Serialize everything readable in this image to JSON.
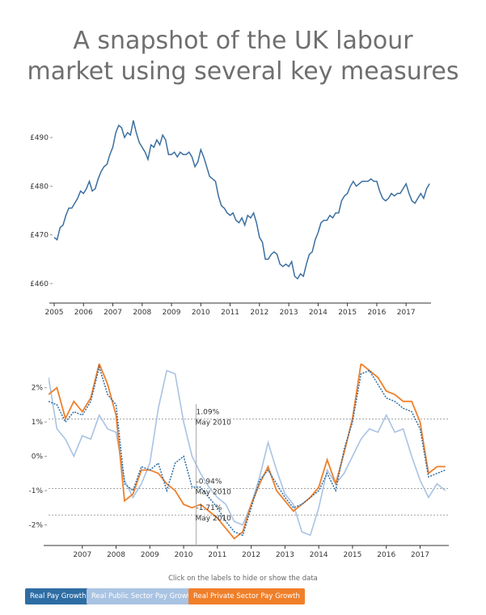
{
  "page": {
    "title_line1": "A snapshot of the UK labour",
    "title_line2": "market using several key measures",
    "hint": "Click on the labels to hide or show the data"
  },
  "legend": [
    {
      "label": "Real Pay Growth",
      "color": "#2e6da4"
    },
    {
      "label": "Real Public Sector Pay Growth",
      "color": "#a9c3e3"
    },
    {
      "label": "Real Private Sector Pay Growth",
      "color": "#f07f2a"
    }
  ],
  "chart_data": [
    {
      "type": "line",
      "x_ticks": [
        "2005",
        "2006",
        "2007",
        "2008",
        "2009",
        "2010",
        "2011",
        "2012",
        "2013",
        "2014",
        "2015",
        "2016",
        "2017"
      ],
      "y_ticks": [
        "£460",
        "£470",
        "£480",
        "£490"
      ],
      "ylim": [
        456,
        495
      ],
      "xlim": [
        2005,
        2017.85
      ],
      "series": [
        {
          "color": "#3a6fa0",
          "x": [
            2005.0,
            2005.1,
            2005.2,
            2005.3,
            2005.4,
            2005.5,
            2005.6,
            2005.7,
            2005.8,
            2005.9,
            2006.0,
            2006.1,
            2006.2,
            2006.3,
            2006.4,
            2006.5,
            2006.6,
            2006.7,
            2006.8,
            2006.9,
            2007.0,
            2007.1,
            2007.2,
            2007.3,
            2007.4,
            2007.5,
            2007.6,
            2007.7,
            2007.8,
            2007.9,
            2008.0,
            2008.1,
            2008.2,
            2008.3,
            2008.4,
            2008.5,
            2008.6,
            2008.7,
            2008.8,
            2008.9,
            2009.0,
            2009.1,
            2009.2,
            2009.3,
            2009.4,
            2009.5,
            2009.6,
            2009.7,
            2009.8,
            2009.9,
            2010.0,
            2010.1,
            2010.2,
            2010.3,
            2010.4,
            2010.5,
            2010.6,
            2010.7,
            2010.8,
            2010.9,
            2011.0,
            2011.1,
            2011.2,
            2011.3,
            2011.4,
            2011.5,
            2011.6,
            2011.7,
            2011.8,
            2011.9,
            2012.0,
            2012.1,
            2012.2,
            2012.3,
            2012.4,
            2012.5,
            2012.6,
            2012.7,
            2012.8,
            2012.9,
            2013.0,
            2013.1,
            2013.2,
            2013.3,
            2013.4,
            2013.5,
            2013.6,
            2013.7,
            2013.8,
            2013.9,
            2014.0,
            2014.1,
            2014.2,
            2014.3,
            2014.4,
            2014.5,
            2014.6,
            2014.7,
            2014.8,
            2014.9,
            2015.0,
            2015.1,
            2015.2,
            2015.3,
            2015.4,
            2015.5,
            2015.6,
            2015.7,
            2015.8,
            2015.9,
            2016.0,
            2016.1,
            2016.2,
            2016.3,
            2016.4,
            2016.5,
            2016.6,
            2016.7,
            2016.8,
            2016.9,
            2017.0,
            2017.1,
            2017.2,
            2017.3,
            2017.4,
            2017.5,
            2017.6,
            2017.7,
            2017.8
          ],
          "values": [
            469.5,
            469.0,
            471.5,
            472.0,
            474.0,
            475.5,
            475.5,
            476.5,
            477.5,
            479.0,
            478.5,
            479.5,
            481.0,
            479.0,
            479.5,
            481.5,
            483.0,
            484.0,
            484.5,
            486.5,
            488.0,
            491.0,
            492.5,
            492.0,
            490.0,
            491.0,
            490.5,
            493.5,
            491.0,
            489.0,
            488.0,
            487.0,
            485.5,
            488.5,
            488.0,
            489.5,
            488.5,
            490.5,
            489.5,
            486.5,
            486.5,
            487.0,
            486.0,
            487.0,
            486.5,
            486.5,
            487.0,
            486.0,
            484.0,
            485.0,
            487.5,
            486.0,
            484.0,
            482.0,
            481.5,
            481.0,
            478.0,
            476.0,
            475.5,
            474.5,
            474.0,
            474.5,
            473.0,
            472.5,
            473.5,
            472.0,
            474.0,
            473.5,
            474.5,
            472.5,
            469.5,
            468.5,
            465.0,
            465.0,
            466.0,
            466.5,
            466.0,
            464.0,
            463.5,
            464.0,
            463.5,
            464.5,
            461.5,
            461.0,
            462.0,
            461.5,
            464.0,
            466.0,
            466.5,
            469.0,
            470.5,
            472.5,
            473.0,
            473.0,
            474.0,
            473.5,
            474.5,
            474.5,
            477.0,
            478.0,
            478.5,
            480.0,
            481.0,
            480.0,
            480.5,
            481.0,
            481.0,
            481.0,
            481.5,
            481.0,
            481.0,
            479.0,
            477.5,
            477.0,
            477.5,
            478.5,
            478.0,
            478.5,
            478.5,
            479.5,
            480.5,
            478.5,
            477.0,
            476.5,
            477.5,
            478.5,
            477.5,
            479.5,
            480.5
          ]
        }
      ]
    },
    {
      "type": "line",
      "x_ticks": [
        "2007",
        "2008",
        "2009",
        "2010",
        "2011",
        "2012",
        "2013",
        "2014",
        "2015",
        "2016",
        "2017"
      ],
      "y_ticks": [
        "2%",
        "1%",
        "0%",
        "-1%",
        "-2%"
      ],
      "ylim": [
        -2.6,
        2.7
      ],
      "xlim": [
        2006.0,
        2017.85
      ],
      "reference_lines": [
        1.09,
        -0.94,
        -1.71
      ],
      "annotations": [
        {
          "value": "1.09%",
          "date": "May 2010"
        },
        {
          "value": "-0.94%",
          "date": "May 2010"
        },
        {
          "value": "-1.71%",
          "date": "May 2010"
        }
      ],
      "series": [
        {
          "name": "Real Pay Growth",
          "color": "#2e6da4",
          "x": [
            2006.0,
            2006.25,
            2006.5,
            2006.75,
            2007.0,
            2007.25,
            2007.5,
            2007.75,
            2008.0,
            2008.25,
            2008.5,
            2008.75,
            2009.0,
            2009.25,
            2009.5,
            2009.75,
            2010.0,
            2010.25,
            2010.5,
            2010.75,
            2011.0,
            2011.25,
            2011.5,
            2011.75,
            2012.0,
            2012.25,
            2012.5,
            2012.75,
            2013.0,
            2013.25,
            2013.5,
            2013.75,
            2014.0,
            2014.25,
            2014.5,
            2014.75,
            2015.0,
            2015.25,
            2015.5,
            2015.75,
            2016.0,
            2016.25,
            2016.5,
            2016.75,
            2017.0,
            2017.25,
            2017.5,
            2017.75
          ],
          "values": [
            1.6,
            1.5,
            1.0,
            1.3,
            1.2,
            1.6,
            2.6,
            1.8,
            1.5,
            -0.8,
            -1.0,
            -0.3,
            -0.4,
            -0.2,
            -1.0,
            -0.2,
            0.0,
            -0.9,
            -0.9,
            -1.2,
            -1.5,
            -1.9,
            -2.2,
            -2.3,
            -1.5,
            -0.7,
            -0.4,
            -0.8,
            -1.2,
            -1.5,
            -1.4,
            -1.2,
            -1.0,
            -0.5,
            -1.0,
            0.2,
            1.0,
            2.4,
            2.5,
            2.1,
            1.7,
            1.6,
            1.4,
            1.3,
            0.8,
            -0.6,
            -0.5,
            -0.4
          ]
        },
        {
          "name": "Real Public Sector Pay Growth",
          "color": "#a9c3e3",
          "x": [
            2006.0,
            2006.25,
            2006.5,
            2006.75,
            2007.0,
            2007.25,
            2007.5,
            2007.75,
            2008.0,
            2008.25,
            2008.5,
            2008.75,
            2009.0,
            2009.25,
            2009.5,
            2009.75,
            2010.0,
            2010.25,
            2010.5,
            2010.75,
            2011.0,
            2011.25,
            2011.5,
            2011.75,
            2012.0,
            2012.25,
            2012.5,
            2012.75,
            2013.0,
            2013.25,
            2013.5,
            2013.75,
            2014.0,
            2014.25,
            2014.5,
            2014.75,
            2015.0,
            2015.25,
            2015.5,
            2015.75,
            2016.0,
            2016.25,
            2016.5,
            2016.75,
            2017.0,
            2017.25,
            2017.5,
            2017.75
          ],
          "values": [
            2.3,
            0.8,
            0.5,
            0.0,
            0.6,
            0.5,
            1.2,
            0.8,
            0.7,
            -0.7,
            -1.2,
            -0.8,
            -0.2,
            1.4,
            2.5,
            2.4,
            1.0,
            0.0,
            -0.5,
            -0.9,
            -1.2,
            -1.4,
            -1.9,
            -2.0,
            -1.4,
            -0.6,
            0.4,
            -0.4,
            -1.1,
            -1.4,
            -2.2,
            -2.3,
            -1.5,
            -0.4,
            -0.8,
            -0.5,
            0.0,
            0.5,
            0.8,
            0.7,
            1.2,
            0.7,
            0.8,
            0.0,
            -0.7,
            -1.2,
            -0.8,
            -1.0
          ]
        },
        {
          "name": "Real Private Sector Pay Growth",
          "color": "#f07f2a",
          "x": [
            2006.0,
            2006.25,
            2006.5,
            2006.75,
            2007.0,
            2007.25,
            2007.5,
            2007.75,
            2008.0,
            2008.25,
            2008.5,
            2008.75,
            2009.0,
            2009.25,
            2009.5,
            2009.75,
            2010.0,
            2010.25,
            2010.5,
            2010.75,
            2011.0,
            2011.25,
            2011.5,
            2011.75,
            2012.0,
            2012.25,
            2012.5,
            2012.75,
            2013.0,
            2013.25,
            2013.5,
            2013.75,
            2014.0,
            2014.25,
            2014.5,
            2014.75,
            2015.0,
            2015.25,
            2015.5,
            2015.75,
            2016.0,
            2016.25,
            2016.5,
            2016.75,
            2017.0,
            2017.25,
            2017.5,
            2017.75
          ],
          "values": [
            1.8,
            2.0,
            1.1,
            1.6,
            1.3,
            1.7,
            2.7,
            2.1,
            1.2,
            -1.3,
            -1.1,
            -0.4,
            -0.4,
            -0.5,
            -0.8,
            -1.0,
            -1.4,
            -1.5,
            -1.4,
            -1.6,
            -1.8,
            -2.1,
            -2.4,
            -2.2,
            -1.4,
            -0.8,
            -0.3,
            -1.0,
            -1.3,
            -1.6,
            -1.4,
            -1.2,
            -0.9,
            -0.1,
            -0.8,
            0.1,
            1.1,
            2.7,
            2.5,
            2.3,
            1.9,
            1.8,
            1.6,
            1.6,
            1.0,
            -0.5,
            -0.3,
            -0.3
          ]
        }
      ]
    }
  ]
}
